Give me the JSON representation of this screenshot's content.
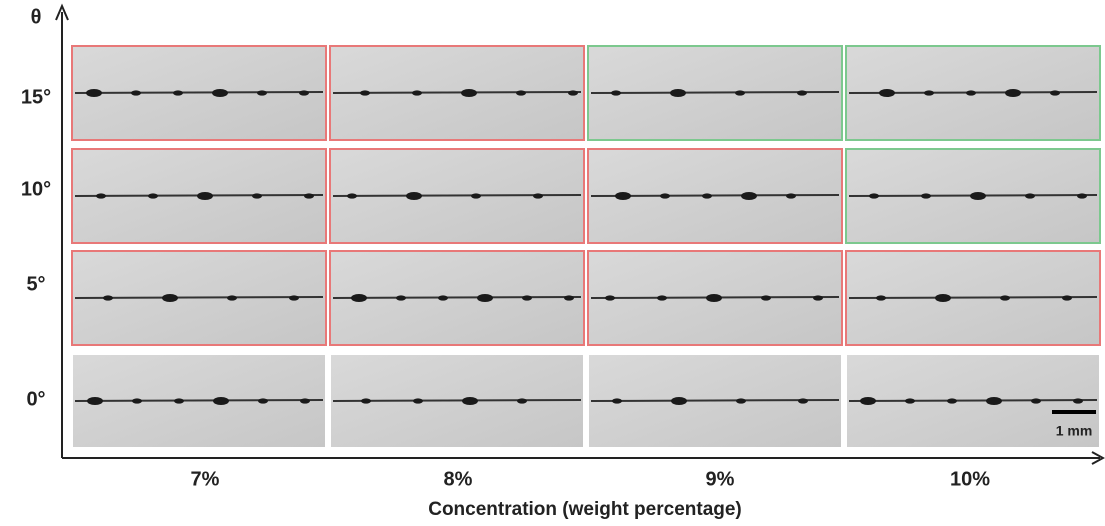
{
  "axis": {
    "y_label": "θ",
    "x_title": "Concentration (weight percentage)"
  },
  "columns": [
    "7%",
    "8%",
    "9%",
    "10%"
  ],
  "rows": [
    {
      "label": "15°",
      "borders": [
        "#e87878",
        "#e87878",
        "#7cc88e",
        "#7cc88e"
      ]
    },
    {
      "label": "10°",
      "borders": [
        "#e87878",
        "#e87878",
        "#e87878",
        "#7cc88e"
      ]
    },
    {
      "label": "5°",
      "borders": [
        "#e87878",
        "#e87878",
        "#e87878",
        "#e87878"
      ]
    },
    {
      "label": "0°",
      "borders": [
        "#ffffff",
        "#ffffff",
        "#ffffff",
        "#ffffff"
      ]
    }
  ],
  "scale_bar": "1 mm"
}
